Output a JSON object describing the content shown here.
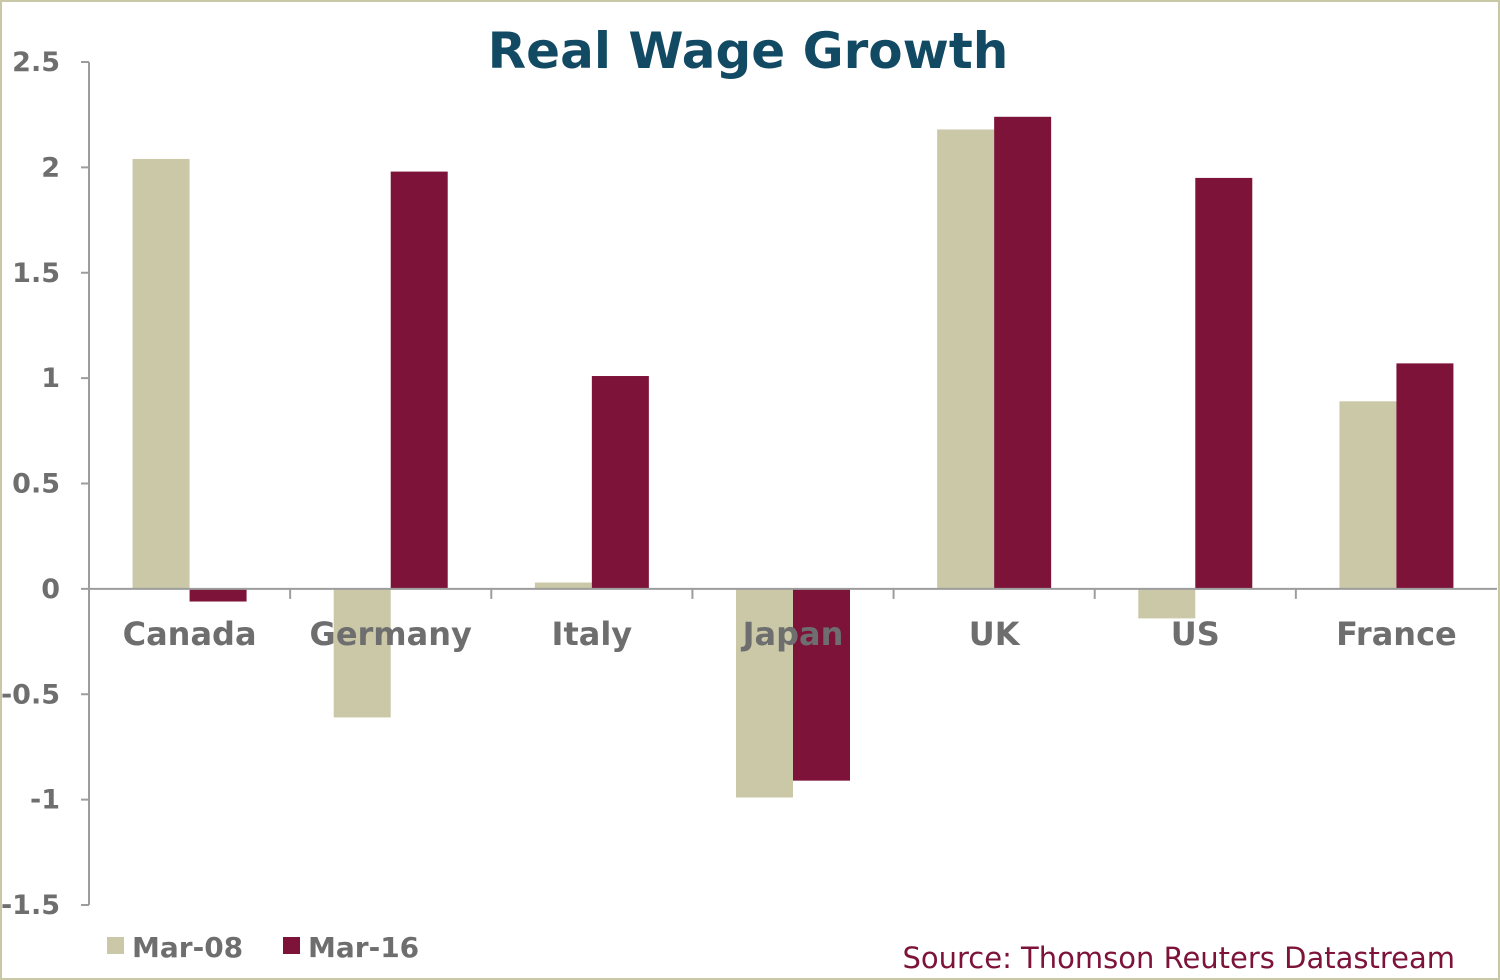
{
  "chart_data": {
    "type": "bar",
    "title": "Real Wage Growth",
    "categories": [
      "Canada",
      "Germany",
      "Italy",
      "Japan",
      "UK",
      "US",
      "France"
    ],
    "series": [
      {
        "name": "Mar-08",
        "values": [
          2.04,
          -0.61,
          0.03,
          -0.99,
          2.18,
          -0.14,
          0.89
        ]
      },
      {
        "name": "Mar-16",
        "values": [
          -0.06,
          1.98,
          1.01,
          -0.91,
          2.24,
          1.95,
          1.07
        ]
      }
    ],
    "ylim": [
      -1.5,
      2.5
    ],
    "yticks": [
      "2.5",
      "2",
      "1.5",
      "1",
      "0.5",
      "0",
      "-0.5",
      "-1",
      "-1.5"
    ],
    "xlabel": "",
    "ylabel": "",
    "legend_position": "bottom-left",
    "grid": false,
    "source": "Source: Thomson Reuters Datastream"
  },
  "colors": {
    "title": "#124a63",
    "series": [
      "#cac8a7",
      "#7d1339"
    ],
    "axis_text": "#6e6e6e",
    "axis_line": "#9d9d9d",
    "source_text": "#7d1339",
    "frame": "#c9c8a6"
  }
}
